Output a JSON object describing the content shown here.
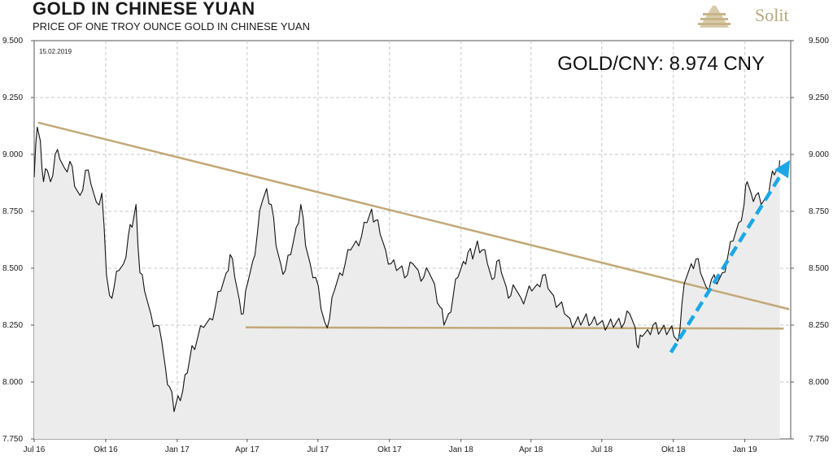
{
  "header": {
    "title": "GOLD IN CHINESE YUAN",
    "subtitle": "PRICE OF ONE TROY OUNCE GOLD IN CHINESE YUAN",
    "brand": "Solit"
  },
  "chart_data": {
    "type": "area",
    "date_stamp": "15.02.2019",
    "annotation": "GOLD/CNY: 8.974 CNY",
    "ylim": [
      7750,
      9500
    ],
    "yticks": [
      7750,
      8000,
      8250,
      8500,
      8750,
      9000,
      9250,
      9500
    ],
    "ytick_labels": [
      "7.750",
      "8.000",
      "8.250",
      "8.500",
      "8.750",
      "9.000",
      "9.250",
      "9.500"
    ],
    "xlim": [
      "2016-07-01",
      "2019-03-01"
    ],
    "xticks": [
      "2016-07-01",
      "2016-10-01",
      "2017-01-01",
      "2017-04-01",
      "2017-07-01",
      "2017-10-01",
      "2018-01-01",
      "2018-04-01",
      "2018-07-01",
      "2018-10-01",
      "2019-01-01"
    ],
    "xtick_labels": [
      "Jul 16",
      "Okt 16",
      "Jan 17",
      "Apr 17",
      "Jul 17",
      "Okt 17",
      "Jan 18",
      "Apr 18",
      "Jul 18",
      "Okt 18",
      "Jan 19"
    ],
    "grid": true,
    "series": [
      {
        "values": [
          [
            "2016-07-01",
            8900
          ],
          [
            "2016-07-05",
            9120
          ],
          [
            "2016-07-09",
            9060
          ],
          [
            "2016-07-13",
            8880
          ],
          [
            "2016-07-18",
            8930
          ],
          [
            "2016-07-22",
            8880
          ],
          [
            "2016-07-28",
            9000
          ],
          [
            "2016-08-03",
            8980
          ],
          [
            "2016-08-09",
            8940
          ],
          [
            "2016-08-16",
            8970
          ],
          [
            "2016-08-22",
            8860
          ],
          [
            "2016-08-29",
            8820
          ],
          [
            "2016-09-05",
            8930
          ],
          [
            "2016-09-12",
            8870
          ],
          [
            "2016-09-19",
            8790
          ],
          [
            "2016-09-26",
            8830
          ],
          [
            "2016-10-02",
            8470
          ],
          [
            "2016-10-06",
            8380
          ],
          [
            "2016-10-12",
            8420
          ],
          [
            "2016-10-18",
            8490
          ],
          [
            "2016-10-24",
            8520
          ],
          [
            "2016-10-30",
            8640
          ],
          [
            "2016-11-04",
            8680
          ],
          [
            "2016-11-09",
            8780
          ],
          [
            "2016-11-14",
            8480
          ],
          [
            "2016-11-20",
            8400
          ],
          [
            "2016-11-28",
            8300
          ],
          [
            "2016-12-05",
            8250
          ],
          [
            "2016-12-12",
            8180
          ],
          [
            "2016-12-17",
            8060
          ],
          [
            "2016-12-22",
            7980
          ],
          [
            "2016-12-28",
            7870
          ],
          [
            "2017-01-02",
            7940
          ],
          [
            "2017-01-08",
            7960
          ],
          [
            "2017-01-14",
            8040
          ],
          [
            "2017-01-20",
            8160
          ],
          [
            "2017-01-27",
            8190
          ],
          [
            "2017-02-04",
            8240
          ],
          [
            "2017-02-12",
            8280
          ],
          [
            "2017-02-19",
            8330
          ],
          [
            "2017-02-26",
            8400
          ],
          [
            "2017-03-05",
            8480
          ],
          [
            "2017-03-10",
            8560
          ],
          [
            "2017-03-16",
            8460
          ],
          [
            "2017-03-22",
            8360
          ],
          [
            "2017-03-27",
            8300
          ],
          [
            "2017-04-02",
            8440
          ],
          [
            "2017-04-08",
            8530
          ],
          [
            "2017-04-14",
            8650
          ],
          [
            "2017-04-20",
            8790
          ],
          [
            "2017-04-26",
            8850
          ],
          [
            "2017-05-02",
            8780
          ],
          [
            "2017-05-08",
            8600
          ],
          [
            "2017-05-14",
            8520
          ],
          [
            "2017-05-20",
            8490
          ],
          [
            "2017-05-27",
            8560
          ],
          [
            "2017-06-03",
            8680
          ],
          [
            "2017-06-09",
            8780
          ],
          [
            "2017-06-15",
            8600
          ],
          [
            "2017-06-21",
            8520
          ],
          [
            "2017-06-28",
            8460
          ],
          [
            "2017-07-05",
            8320
          ],
          [
            "2017-07-10",
            8260
          ],
          [
            "2017-07-16",
            8280
          ],
          [
            "2017-07-22",
            8400
          ],
          [
            "2017-07-29",
            8480
          ],
          [
            "2017-08-05",
            8520
          ],
          [
            "2017-08-12",
            8580
          ],
          [
            "2017-08-19",
            8620
          ],
          [
            "2017-08-26",
            8640
          ],
          [
            "2017-09-02",
            8700
          ],
          [
            "2017-09-08",
            8760
          ],
          [
            "2017-09-13",
            8710
          ],
          [
            "2017-09-19",
            8650
          ],
          [
            "2017-09-26",
            8580
          ],
          [
            "2017-10-03",
            8520
          ],
          [
            "2017-10-10",
            8490
          ],
          [
            "2017-10-17",
            8510
          ],
          [
            "2017-10-24",
            8470
          ],
          [
            "2017-10-31",
            8520
          ],
          [
            "2017-11-07",
            8490
          ],
          [
            "2017-11-14",
            8460
          ],
          [
            "2017-11-21",
            8480
          ],
          [
            "2017-11-28",
            8430
          ],
          [
            "2017-12-05",
            8330
          ],
          [
            "2017-12-10",
            8250
          ],
          [
            "2017-12-16",
            8300
          ],
          [
            "2017-12-22",
            8380
          ],
          [
            "2017-12-28",
            8460
          ],
          [
            "2018-01-04",
            8530
          ],
          [
            "2018-01-10",
            8570
          ],
          [
            "2018-01-16",
            8540
          ],
          [
            "2018-01-22",
            8620
          ],
          [
            "2018-01-28",
            8580
          ],
          [
            "2018-02-04",
            8520
          ],
          [
            "2018-02-10",
            8450
          ],
          [
            "2018-02-16",
            8530
          ],
          [
            "2018-02-22",
            8480
          ],
          [
            "2018-02-28",
            8420
          ],
          [
            "2018-03-06",
            8380
          ],
          [
            "2018-03-12",
            8410
          ],
          [
            "2018-03-19",
            8370
          ],
          [
            "2018-03-26",
            8380
          ],
          [
            "2018-04-02",
            8400
          ],
          [
            "2018-04-09",
            8430
          ],
          [
            "2018-04-16",
            8470
          ],
          [
            "2018-04-23",
            8410
          ],
          [
            "2018-04-30",
            8380
          ],
          [
            "2018-05-07",
            8340
          ],
          [
            "2018-05-14",
            8300
          ],
          [
            "2018-05-21",
            8280
          ],
          [
            "2018-05-28",
            8260
          ],
          [
            "2018-06-04",
            8250
          ],
          [
            "2018-06-11",
            8300
          ],
          [
            "2018-06-18",
            8260
          ],
          [
            "2018-06-25",
            8250
          ],
          [
            "2018-07-02",
            8270
          ],
          [
            "2018-07-09",
            8250
          ],
          [
            "2018-07-16",
            8240
          ],
          [
            "2018-07-23",
            8280
          ],
          [
            "2018-07-30",
            8260
          ],
          [
            "2018-08-06",
            8300
          ],
          [
            "2018-08-13",
            8240
          ],
          [
            "2018-08-17",
            8150
          ],
          [
            "2018-08-22",
            8200
          ],
          [
            "2018-08-29",
            8230
          ],
          [
            "2018-09-05",
            8250
          ],
          [
            "2018-09-12",
            8210
          ],
          [
            "2018-09-19",
            8250
          ],
          [
            "2018-09-26",
            8230
          ],
          [
            "2018-10-02",
            8200
          ],
          [
            "2018-10-07",
            8180
          ],
          [
            "2018-10-12",
            8340
          ],
          [
            "2018-10-18",
            8460
          ],
          [
            "2018-10-24",
            8520
          ],
          [
            "2018-10-30",
            8540
          ],
          [
            "2018-11-05",
            8480
          ],
          [
            "2018-11-12",
            8420
          ],
          [
            "2018-11-19",
            8450
          ],
          [
            "2018-11-26",
            8430
          ],
          [
            "2018-12-03",
            8480
          ],
          [
            "2018-12-10",
            8550
          ],
          [
            "2018-12-17",
            8620
          ],
          [
            "2018-12-24",
            8700
          ],
          [
            "2018-12-31",
            8780
          ],
          [
            "2019-01-04",
            8880
          ],
          [
            "2019-01-09",
            8830
          ],
          [
            "2019-01-15",
            8820
          ],
          [
            "2019-01-22",
            8780
          ],
          [
            "2019-01-28",
            8810
          ],
          [
            "2019-02-03",
            8880
          ],
          [
            "2019-02-08",
            8910
          ],
          [
            "2019-02-12",
            8940
          ],
          [
            "2019-02-15",
            8974
          ]
        ]
      }
    ],
    "trendlines": [
      {
        "kind": "falling-resistance",
        "color": "#c2a878",
        "from": [
          "2016-07-06",
          9140
        ],
        "to": [
          "2019-02-27",
          8320
        ]
      },
      {
        "kind": "horizontal-support",
        "color": "#c2a878",
        "from": [
          "2017-03-30",
          8240
        ],
        "to": [
          "2019-02-20",
          8235
        ]
      }
    ],
    "arrow": {
      "color": "#1aa7e6",
      "from": [
        "2018-09-28",
        8130
      ],
      "to": [
        "2019-02-28",
        8975
      ]
    },
    "colors": {
      "line": "#111111",
      "fill": "#ececec",
      "grid": "#c8c8c8",
      "trend": "#c2a878",
      "arrow": "#1aa7e6"
    }
  }
}
